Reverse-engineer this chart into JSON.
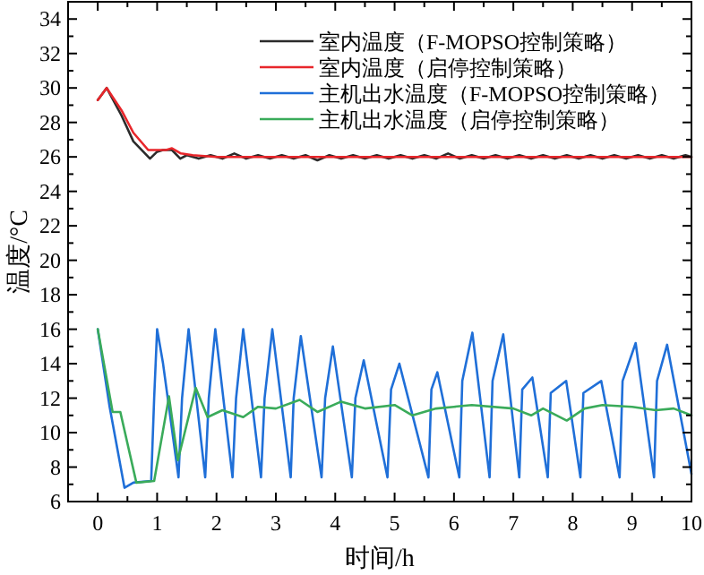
{
  "chart_data": {
    "type": "line",
    "xlabel": "时间/h",
    "ylabel": "温度/°C",
    "xlim": [
      -0.5,
      10
    ],
    "ylim": [
      6,
      35
    ],
    "xticks": [
      0,
      {
        "value": 0.5,
        "label": null
      },
      1,
      {
        "value": 1.5,
        "label": null
      },
      2,
      {
        "value": 2.5,
        "label": null
      },
      3,
      {
        "value": 3.5,
        "label": null
      },
      4,
      {
        "value": 4.5,
        "label": null
      },
      5,
      {
        "value": 5.5,
        "label": null
      },
      6,
      {
        "value": 6.5,
        "label": null
      },
      7,
      {
        "value": 7.5,
        "label": null
      },
      8,
      {
        "value": 8.5,
        "label": null
      },
      9,
      {
        "value": 9.5,
        "label": null
      },
      10
    ],
    "yticks": [
      6,
      {
        "value": 7,
        "label": null
      },
      8,
      {
        "value": 9,
        "label": null
      },
      10,
      {
        "value": 11,
        "label": null
      },
      12,
      {
        "value": 13,
        "label": null
      },
      14,
      {
        "value": 15,
        "label": null
      },
      16,
      {
        "value": 17,
        "label": null
      },
      18,
      {
        "value": 19,
        "label": null
      },
      20,
      {
        "value": 21,
        "label": null
      },
      22,
      {
        "value": 23,
        "label": null
      },
      24,
      {
        "value": 25,
        "label": null
      },
      26,
      {
        "value": 27,
        "label": null
      },
      28,
      {
        "value": 29,
        "label": null
      },
      30,
      {
        "value": 31,
        "label": null
      },
      32,
      {
        "value": 33,
        "label": null
      },
      34
    ],
    "grid": false,
    "legend": "top right",
    "line_style": "solid",
    "marker": "none",
    "series": [
      {
        "name": "室内温度（F-MOPSO控制策略）",
        "color": "#2b2b2b",
        "x": [
          0,
          0.15,
          0.4,
          0.6,
          0.88,
          1.0,
          1.1,
          1.25,
          1.39,
          1.5,
          1.7,
          1.9,
          2.1,
          2.3,
          2.5,
          2.7,
          2.9,
          3.1,
          3.3,
          3.5,
          3.7,
          3.9,
          4.1,
          4.3,
          4.5,
          4.7,
          4.9,
          5.1,
          5.3,
          5.5,
          5.7,
          5.9,
          6.1,
          6.3,
          6.5,
          6.7,
          6.9,
          7.1,
          7.3,
          7.5,
          7.7,
          7.9,
          8.1,
          8.3,
          8.5,
          8.7,
          8.9,
          9.1,
          9.3,
          9.5,
          9.7,
          9.9,
          10
        ],
        "values": [
          29.3,
          30.0,
          28.4,
          26.9,
          25.9,
          26.3,
          26.4,
          26.4,
          25.9,
          26.1,
          25.9,
          26.1,
          25.9,
          26.2,
          25.9,
          26.1,
          25.9,
          26.1,
          25.9,
          26.1,
          25.8,
          26.1,
          25.9,
          26.1,
          25.9,
          26.1,
          25.9,
          26.1,
          25.9,
          26.1,
          25.9,
          26.2,
          25.9,
          26.1,
          25.9,
          26.1,
          25.9,
          26.1,
          25.9,
          26.1,
          25.9,
          26.1,
          25.9,
          26.1,
          25.9,
          26.1,
          25.9,
          26.1,
          25.9,
          26.1,
          25.9,
          26.1,
          26.0
        ]
      },
      {
        "name": "室内温度（启停控制策略）",
        "color": "#e8262b",
        "x": [
          0,
          0.15,
          0.4,
          0.6,
          0.85,
          1.0,
          1.15,
          1.25,
          1.4,
          1.6,
          2,
          3,
          4,
          5,
          6,
          7,
          8,
          9,
          10
        ],
        "values": [
          29.3,
          30.0,
          28.7,
          27.4,
          26.4,
          26.4,
          26.4,
          26.5,
          26.2,
          26.1,
          26.0,
          26.0,
          26.0,
          26.0,
          26.0,
          26.0,
          26.0,
          26.0,
          26.0
        ]
      },
      {
        "name": "主机出水温度（F-MOPSO控制策略）",
        "color": "#1f6fd8",
        "x": [
          0,
          0.2,
          0.45,
          0.6,
          0.9,
          0.95,
          1.0,
          1.1,
          1.36,
          1.42,
          1.53,
          1.81,
          1.87,
          1.98,
          2.27,
          2.33,
          2.45,
          2.75,
          2.81,
          2.94,
          3.25,
          3.3,
          3.42,
          3.77,
          3.83,
          3.96,
          4.28,
          4.34,
          4.48,
          4.88,
          4.94,
          5.08,
          5.57,
          5.62,
          5.72,
          6.09,
          6.14,
          6.31,
          6.6,
          6.65,
          6.83,
          7.1,
          7.15,
          7.32,
          7.58,
          7.63,
          7.89,
          8.13,
          8.18,
          8.48,
          8.79,
          8.84,
          9.06,
          9.37,
          9.42,
          9.59,
          10
        ],
        "values": [
          16,
          11.5,
          6.8,
          7.1,
          7.2,
          12,
          16,
          14,
          7.4,
          12,
          16,
          7.4,
          12,
          16,
          7.4,
          12,
          16,
          7.4,
          12,
          16,
          7.4,
          12,
          15.6,
          7.4,
          12,
          15.0,
          7.4,
          12,
          14.2,
          7.4,
          12.5,
          14.0,
          7.4,
          12.5,
          13.5,
          7.4,
          13,
          15.8,
          7.4,
          13,
          15.7,
          7.4,
          12.5,
          13.2,
          7.4,
          12.3,
          13.0,
          7.4,
          12.3,
          13.0,
          7.4,
          13,
          15.2,
          7.4,
          13,
          15.1,
          7.6
        ]
      },
      {
        "name": "主机出水温度（启停控制策略）",
        "color": "#3aab5a",
        "x": [
          0,
          0.25,
          0.38,
          0.65,
          0.95,
          1.2,
          1.35,
          1.65,
          1.85,
          2.1,
          2.45,
          2.7,
          3.0,
          3.4,
          3.7,
          4.1,
          4.5,
          5.0,
          5.3,
          5.7,
          6.0,
          6.3,
          7.0,
          7.3,
          7.5,
          7.9,
          8.2,
          8.5,
          9.0,
          9.4,
          9.7,
          10
        ],
        "values": [
          16,
          11.2,
          11.2,
          7.1,
          7.2,
          12.1,
          8.4,
          12.6,
          10.9,
          11.3,
          10.9,
          11.5,
          11.4,
          11.9,
          11.2,
          11.8,
          11.4,
          11.6,
          11.0,
          11.4,
          11.5,
          11.6,
          11.4,
          11.0,
          11.4,
          10.7,
          11.4,
          11.6,
          11.5,
          11.3,
          11.4,
          11.0
        ]
      }
    ]
  }
}
